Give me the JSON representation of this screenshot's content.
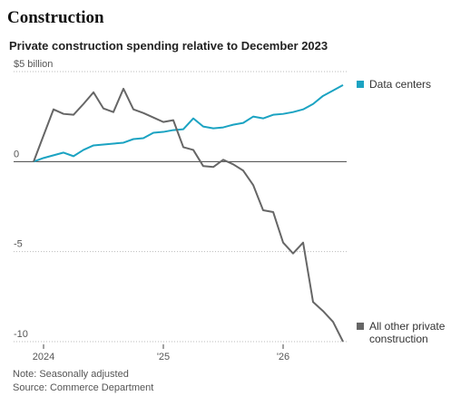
{
  "chart_data": {
    "type": "line",
    "title": "Construction",
    "subtitle": "Private construction spending relative to December 2023",
    "note": "Note: Seasonally adjusted",
    "source": "Source: Commerce Department",
    "x": [
      2023.917,
      2024,
      2024.083,
      2024.167,
      2024.25,
      2024.333,
      2024.417,
      2024.5,
      2024.583,
      2024.667,
      2024.75,
      2024.833,
      2024.917,
      2025,
      2025.083,
      2025.167,
      2025.25,
      2025.333,
      2025.417,
      2025.5,
      2025.583,
      2025.667,
      2025.75,
      2025.833,
      2025.917,
      2026,
      2026.083,
      2026.167,
      2026.25,
      2026.333,
      2026.417,
      2026.5
    ],
    "series": [
      {
        "name": "Data centers",
        "color": "#1ba3c2",
        "values": [
          0,
          0.2,
          0.35,
          0.5,
          0.3,
          0.65,
          0.9,
          0.95,
          1.0,
          1.05,
          1.25,
          1.3,
          1.6,
          1.65,
          1.75,
          1.8,
          2.4,
          1.95,
          1.85,
          1.9,
          2.05,
          2.15,
          2.5,
          2.4,
          2.6,
          2.65,
          2.75,
          2.9,
          3.2,
          3.65,
          3.95,
          4.25
        ]
      },
      {
        "name": "All other private construction",
        "color": "#666666",
        "values": [
          0,
          1.45,
          2.9,
          2.65,
          2.6,
          3.2,
          3.85,
          2.95,
          2.75,
          4.05,
          2.9,
          2.7,
          2.45,
          2.2,
          2.3,
          0.8,
          0.65,
          -0.25,
          -0.3,
          0.1,
          -0.15,
          -0.5,
          -1.3,
          -2.7,
          -2.8,
          -4.5,
          -5.1,
          -4.5,
          -7.8,
          -8.3,
          -8.9,
          -10.0
        ]
      }
    ],
    "xlim": [
      2023.75,
      2026.5
    ],
    "xticks": [
      {
        "value": 2024,
        "label": "2024"
      },
      {
        "value": 2025,
        "label": "'25"
      },
      {
        "value": 2026,
        "label": "'26"
      }
    ],
    "ylim": [
      -10,
      5
    ],
    "yticks": [
      {
        "value": 5,
        "label": "$5 billion"
      },
      0,
      -5,
      -10
    ],
    "grid": true
  }
}
